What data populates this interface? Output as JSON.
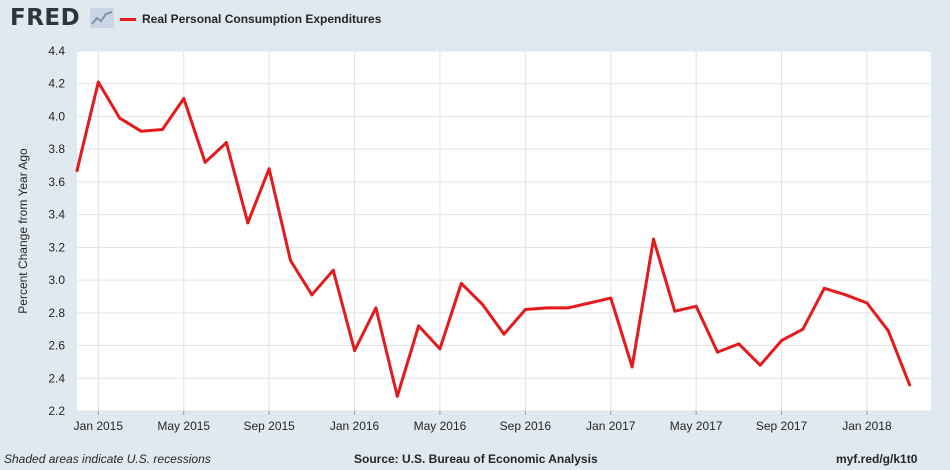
{
  "header": {
    "logo_text": "FRED",
    "logo_icon": "trend-graph-icon"
  },
  "colors": {
    "line": "#e41a1c",
    "background": "#e1e9f0",
    "plot_bg": "#ffffff",
    "grid": "#e3e3e3",
    "axis_text": "#262626"
  },
  "footer": {
    "recession_note": "Shaded areas indicate U.S. recessions",
    "source": "Source: U.S. Bureau of Economic Analysis",
    "short_url": "myf.red/g/k1t0"
  },
  "chart_data": {
    "type": "line",
    "title": "",
    "ylabel": "Percent Change from Year Ago",
    "xlabel": "",
    "ylim": [
      2.2,
      4.4
    ],
    "yticks": [
      2.2,
      2.4,
      2.6,
      2.8,
      3.0,
      3.2,
      3.4,
      3.6,
      3.8,
      4.0,
      4.2,
      4.4
    ],
    "ytick_labels": [
      "2.2",
      "2.4",
      "2.6",
      "2.8",
      "3.0",
      "3.2",
      "3.4",
      "3.6",
      "3.8",
      "4.0",
      "4.2",
      "4.4"
    ],
    "xlim": [
      "2014-12",
      "2018-04"
    ],
    "xticks": [
      "2015-01",
      "2015-05",
      "2015-09",
      "2016-01",
      "2016-05",
      "2016-09",
      "2017-01",
      "2017-05",
      "2017-09",
      "2018-01"
    ],
    "xtick_labels": [
      "Jan 2015",
      "May 2015",
      "Sep 2015",
      "Jan 2016",
      "May 2016",
      "Sep 2016",
      "Jan 2017",
      "May 2017",
      "Sep 2017",
      "Jan 2018"
    ],
    "grid": true,
    "legend_position": "top-left",
    "series": [
      {
        "name": "Real Personal Consumption Expenditures",
        "x": [
          "2014-12",
          "2015-01",
          "2015-02",
          "2015-03",
          "2015-04",
          "2015-05",
          "2015-06",
          "2015-07",
          "2015-08",
          "2015-09",
          "2015-10",
          "2015-11",
          "2015-12",
          "2016-01",
          "2016-02",
          "2016-03",
          "2016-04",
          "2016-05",
          "2016-06",
          "2016-07",
          "2016-08",
          "2016-09",
          "2016-10",
          "2016-11",
          "2016-12",
          "2017-01",
          "2017-02",
          "2017-03",
          "2017-04",
          "2017-05",
          "2017-06",
          "2017-07",
          "2017-08",
          "2017-09",
          "2017-10",
          "2017-11",
          "2017-12",
          "2018-01",
          "2018-02",
          "2018-03"
        ],
        "values": [
          3.67,
          4.21,
          3.99,
          3.91,
          3.92,
          4.11,
          3.72,
          3.84,
          3.35,
          3.68,
          3.12,
          2.91,
          3.06,
          2.57,
          2.83,
          2.29,
          2.72,
          2.58,
          2.98,
          2.85,
          2.67,
          2.82,
          2.83,
          2.83,
          2.86,
          2.89,
          2.47,
          3.25,
          2.81,
          2.84,
          2.56,
          2.61,
          2.48,
          2.63,
          2.7,
          2.95,
          2.91,
          2.86,
          2.69,
          2.36
        ]
      }
    ]
  }
}
